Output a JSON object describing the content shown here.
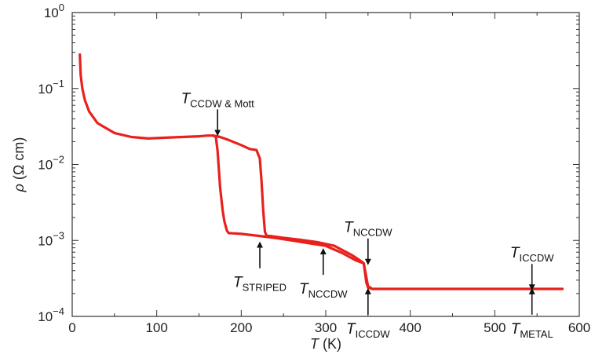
{
  "chart_data": {
    "type": "line",
    "xlabel": {
      "main": "T",
      "unit": " (K)"
    },
    "ylabel": {
      "main": "ρ",
      "unit": " (Ω cm)"
    },
    "xlim": [
      0,
      600
    ],
    "ylim": [
      0.0001,
      1
    ],
    "y_scale": "log",
    "grid": false,
    "x_ticks": [
      0,
      100,
      200,
      300,
      400,
      500,
      600
    ],
    "x_tick_labels": [
      "0",
      "100",
      "200",
      "300",
      "400",
      "500",
      "600"
    ],
    "y_ticks": [
      1,
      0.1,
      0.01,
      0.001,
      0.0001
    ],
    "y_tick_labels": [
      {
        "base": "10",
        "exp": "0"
      },
      {
        "base": "10",
        "exp": "−1"
      },
      {
        "base": "10",
        "exp": "−2"
      },
      {
        "base": "10",
        "exp": "−3"
      },
      {
        "base": "10",
        "exp": "−4"
      }
    ],
    "series": [
      {
        "color": "#e8211c",
        "x": [
          9,
          10,
          12,
          15,
          20,
          30,
          50,
          70,
          90,
          110,
          130,
          150,
          160,
          167,
          170,
          172,
          175,
          178,
          180,
          183,
          185,
          190,
          200,
          220,
          240,
          260,
          280,
          300,
          320,
          335,
          345,
          350,
          355,
          400,
          450,
          500,
          550,
          580
        ],
        "y": [
          0.28,
          0.15,
          0.1,
          0.07,
          0.05,
          0.035,
          0.026,
          0.023,
          0.022,
          0.0225,
          0.023,
          0.0235,
          0.024,
          0.024,
          0.023,
          0.015,
          0.005,
          0.0025,
          0.0018,
          0.00135,
          0.00125,
          0.00124,
          0.00122,
          0.00115,
          0.00108,
          0.001,
          0.00092,
          0.00085,
          0.00068,
          0.00055,
          0.0005,
          0.00025,
          0.00023,
          0.00023,
          0.00023,
          0.00023,
          0.00023,
          0.00023
        ]
      },
      {
        "color": "#e8211c",
        "x": [
          167,
          175,
          185,
          200,
          210,
          218,
          222,
          224,
          226,
          228,
          230,
          235,
          250,
          270,
          290,
          310,
          330,
          340,
          345,
          348,
          350,
          355
        ],
        "y": [
          0.024,
          0.023,
          0.021,
          0.018,
          0.016,
          0.0155,
          0.012,
          0.006,
          0.0025,
          0.0013,
          0.00115,
          0.00114,
          0.00108,
          0.00102,
          0.00095,
          0.00085,
          0.00065,
          0.00055,
          0.0005,
          0.00028,
          0.00024,
          0.00023
        ]
      }
    ],
    "annotations": [
      {
        "main": "T",
        "sub": "CCDW & Mott",
        "arrow": "down",
        "x": 172,
        "y": 0.026
      },
      {
        "main": "T",
        "sub": "STRIPED",
        "arrow": "up",
        "x": 222,
        "y": 0.00088
      },
      {
        "main": "T",
        "sub": "NCCDW",
        "arrow": "up",
        "x": 297,
        "y": 0.00072
      },
      {
        "main": "T",
        "sub": "NCCDW",
        "arrow": "down",
        "x": 350,
        "y": 0.00052
      },
      {
        "main": "T",
        "sub": "ICCDW",
        "arrow": "up",
        "x": 350,
        "y": 0.000215
      },
      {
        "main": "T",
        "sub": "ICCDW",
        "arrow": "down",
        "x": 544,
        "y": 0.00024
      },
      {
        "main": "T",
        "sub": "METAL",
        "arrow": "up",
        "x": 544,
        "y": 0.000215
      }
    ]
  }
}
